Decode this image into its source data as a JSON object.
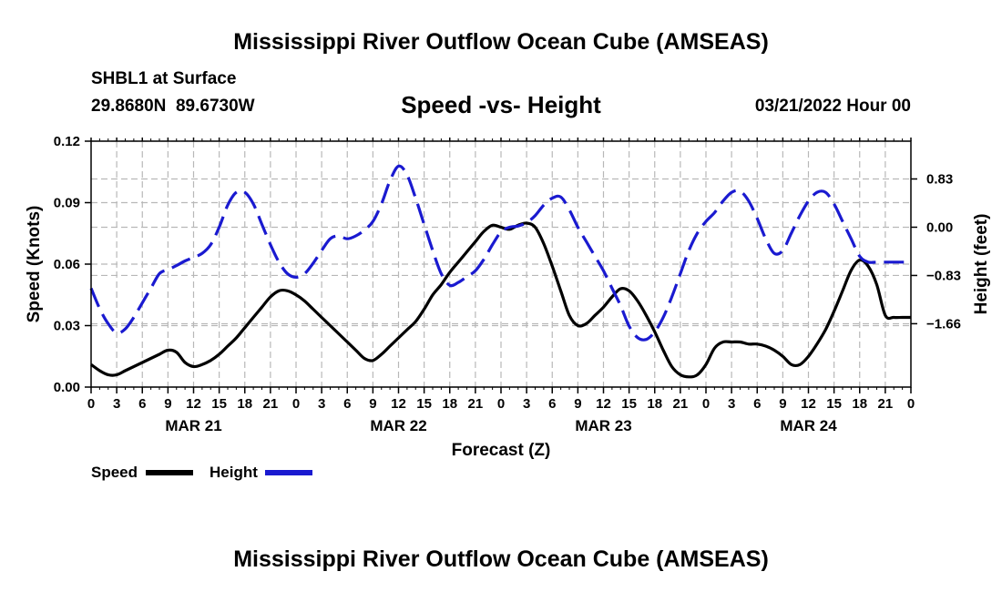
{
  "header": {
    "title": "Mississippi River Outflow Ocean Cube (AMSEAS)",
    "station": "SHBL1 at Surface",
    "coords": "29.8680N  89.6730W",
    "date": "03/21/2022 Hour 00"
  },
  "footer": {
    "title": "Mississippi River Outflow Ocean Cube (AMSEAS)"
  },
  "chart_data": {
    "type": "line",
    "title": "Speed -vs- Height",
    "xlabel": "Forecast (Z)",
    "ylabel": "Speed (Knots)",
    "y2label": "Height (feet)",
    "xlim": [
      0,
      96
    ],
    "ylim": [
      0,
      0.12
    ],
    "y2lim": [
      -2.75,
      1.48
    ],
    "grid": true,
    "x_tick_step_hours": 3,
    "x_tick_labels": [
      "0",
      "3",
      "6",
      "9",
      "12",
      "15",
      "18",
      "21",
      "0",
      "3",
      "6",
      "9",
      "12",
      "15",
      "18",
      "21",
      "0",
      "3",
      "6",
      "9",
      "12",
      "15",
      "18",
      "21",
      "0",
      "3",
      "6",
      "9",
      "12",
      "15",
      "18",
      "21",
      "0"
    ],
    "date_labels": [
      {
        "hour": 12,
        "label": "MAR 21"
      },
      {
        "hour": 36,
        "label": "MAR 22"
      },
      {
        "hour": 60,
        "label": "MAR 23"
      },
      {
        "hour": 84,
        "label": "MAR 24"
      }
    ],
    "y_ticks": [
      "0.00",
      "0.03",
      "0.06",
      "0.09",
      "0.12"
    ],
    "y2_ticks": [
      {
        "value": 0.83,
        "label": "0.83"
      },
      {
        "value": 0.0,
        "label": "0.00"
      },
      {
        "value": -0.83,
        "label": "−0.83"
      },
      {
        "value": -1.66,
        "label": "−1.66"
      }
    ],
    "series": [
      {
        "name": "Speed",
        "axis": "left",
        "color": "#000000",
        "dash": "solid",
        "x": [
          0,
          1,
          2,
          3,
          4,
          5,
          6,
          7,
          8,
          9,
          10,
          11,
          12,
          13,
          14,
          15,
          16,
          17,
          18,
          19,
          20,
          21,
          22,
          23,
          24,
          25,
          26,
          27,
          28,
          29,
          30,
          31,
          32,
          33,
          34,
          35,
          36,
          37,
          38,
          39,
          40,
          41,
          42,
          43,
          44,
          45,
          46,
          47,
          48,
          49,
          50,
          51,
          52,
          53,
          54,
          55,
          56,
          57,
          58,
          59,
          60,
          61,
          62,
          63,
          64,
          65,
          66,
          67,
          68,
          69,
          70,
          71,
          72,
          73,
          74,
          75,
          76,
          77,
          78,
          79,
          80,
          81,
          82,
          83,
          84,
          85,
          86,
          87,
          88,
          89,
          90,
          91,
          92,
          93,
          94,
          95,
          96
        ],
        "values": [
          0.011,
          0.008,
          0.006,
          0.006,
          0.008,
          0.01,
          0.012,
          0.014,
          0.016,
          0.018,
          0.017,
          0.012,
          0.01,
          0.011,
          0.013,
          0.016,
          0.02,
          0.024,
          0.029,
          0.034,
          0.039,
          0.044,
          0.047,
          0.047,
          0.045,
          0.042,
          0.038,
          0.034,
          0.03,
          0.026,
          0.022,
          0.018,
          0.014,
          0.013,
          0.016,
          0.02,
          0.024,
          0.028,
          0.032,
          0.038,
          0.045,
          0.05,
          0.056,
          0.061,
          0.066,
          0.071,
          0.076,
          0.079,
          0.078,
          0.077,
          0.079,
          0.08,
          0.078,
          0.07,
          0.059,
          0.047,
          0.035,
          0.03,
          0.031,
          0.035,
          0.039,
          0.044,
          0.048,
          0.047,
          0.042,
          0.035,
          0.027,
          0.018,
          0.01,
          0.006,
          0.005,
          0.006,
          0.011,
          0.019,
          0.022,
          0.022,
          0.022,
          0.021,
          0.021,
          0.02,
          0.018,
          0.015,
          0.011,
          0.011,
          0.015,
          0.021,
          0.028,
          0.037,
          0.047,
          0.057,
          0.062,
          0.059,
          0.05,
          0.035,
          0.034,
          0.034,
          0.034
        ]
      },
      {
        "name": "Height",
        "axis": "right",
        "color": "#1a1ad0",
        "dash": "dashed",
        "x": [
          0,
          1,
          2,
          3,
          4,
          5,
          6,
          7,
          8,
          9,
          10,
          11,
          12,
          13,
          14,
          15,
          16,
          17,
          18,
          19,
          20,
          21,
          22,
          23,
          24,
          25,
          26,
          27,
          28,
          29,
          30,
          31,
          32,
          33,
          34,
          35,
          36,
          37,
          38,
          39,
          40,
          41,
          42,
          43,
          44,
          45,
          46,
          47,
          48,
          49,
          50,
          51,
          52,
          53,
          54,
          55,
          56,
          57,
          58,
          59,
          60,
          61,
          62,
          63,
          64,
          65,
          66,
          67,
          68,
          69,
          70,
          71,
          72,
          73,
          74,
          75,
          76,
          77,
          78,
          79,
          80,
          81,
          82,
          83,
          84,
          85,
          86,
          87,
          88,
          89,
          90,
          91,
          92,
          93,
          94,
          95,
          96
        ],
        "values": [
          -1.05,
          -1.4,
          -1.66,
          -1.82,
          -1.75,
          -1.55,
          -1.3,
          -1.05,
          -0.8,
          -0.73,
          -0.66,
          -0.58,
          -0.52,
          -0.45,
          -0.3,
          0.0,
          0.38,
          0.6,
          0.6,
          0.4,
          0.05,
          -0.3,
          -0.6,
          -0.8,
          -0.86,
          -0.8,
          -0.62,
          -0.4,
          -0.2,
          -0.15,
          -0.2,
          -0.15,
          -0.05,
          0.1,
          0.4,
          0.8,
          1.05,
          0.9,
          0.5,
          0.05,
          -0.4,
          -0.8,
          -1.0,
          -0.95,
          -0.85,
          -0.75,
          -0.55,
          -0.3,
          -0.08,
          0.0,
          0.02,
          0.08,
          0.2,
          0.38,
          0.5,
          0.52,
          0.3,
          0.0,
          -0.25,
          -0.5,
          -0.75,
          -1.05,
          -1.35,
          -1.7,
          -1.9,
          -1.93,
          -1.8,
          -1.55,
          -1.2,
          -0.8,
          -0.4,
          -0.1,
          0.1,
          0.25,
          0.45,
          0.6,
          0.62,
          0.45,
          0.15,
          -0.2,
          -0.45,
          -0.4,
          -0.1,
          0.2,
          0.45,
          0.6,
          0.6,
          0.4,
          0.1,
          -0.2,
          -0.5,
          -0.6,
          -0.6,
          -0.6,
          -0.6,
          -0.6,
          -0.6
        ]
      }
    ]
  },
  "legend": {
    "speed_label": "Speed",
    "height_label": "Height",
    "speed_color": "#000000",
    "height_color": "#1a1ad0"
  }
}
